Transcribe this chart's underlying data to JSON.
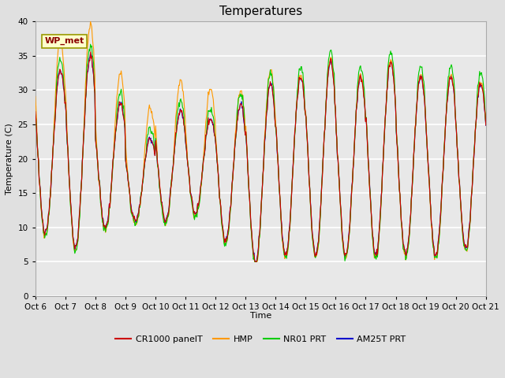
{
  "title": "Temperatures",
  "xlabel": "Time",
  "ylabel": "Temperature (C)",
  "ylim": [
    0,
    40
  ],
  "background_color": "#e0e0e0",
  "plot_bg_color": "#e8e8e8",
  "grid_color": "white",
  "legend_labels": [
    "CR1000 panelT",
    "HMP",
    "NR01 PRT",
    "AM25T PRT"
  ],
  "legend_colors": [
    "#cc0000",
    "#ff9900",
    "#00cc00",
    "#0000cc"
  ],
  "annotation_text": "WP_met",
  "x_tick_labels": [
    "Oct 6",
    "Oct 7",
    "Oct 8",
    "Oct 9",
    "Oct 10",
    "Oct 11",
    "Oct 12",
    "Oct 13",
    "Oct 14",
    "Oct 15",
    "Oct 16",
    "Oct 17",
    "Oct 18",
    "Oct 19",
    "Oct 20",
    "Oct 21"
  ],
  "title_fontsize": 11,
  "axis_label_fontsize": 8,
  "tick_fontsize": 7.5
}
